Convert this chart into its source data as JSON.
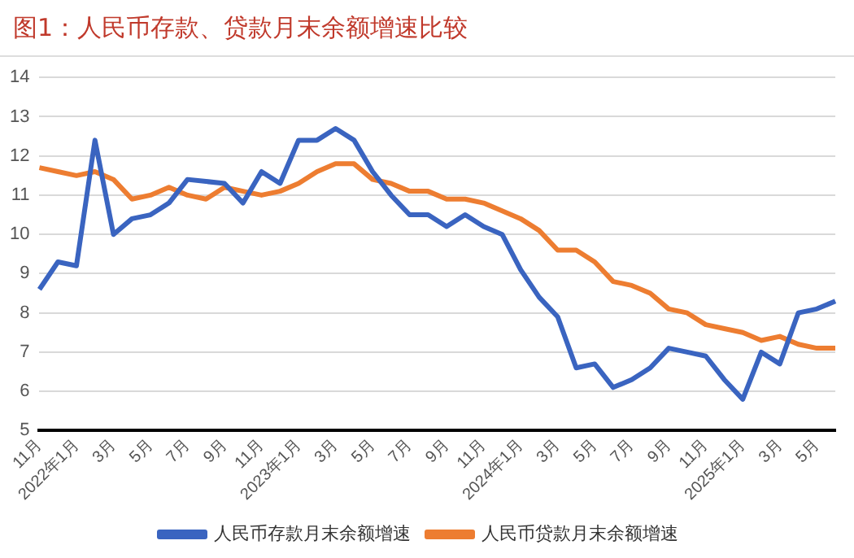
{
  "chart_data": {
    "type": "line",
    "title": "图1：人民币存款、贷款月末余额增速比较",
    "categories": [
      "11月",
      null,
      "2022年1月",
      null,
      "3月",
      null,
      "5月",
      null,
      "7月",
      null,
      "9月",
      null,
      "11月",
      null,
      "2023年1月",
      null,
      "3月",
      null,
      "5月",
      null,
      "7月",
      null,
      "9月",
      null,
      "11月",
      null,
      "2024年1月",
      null,
      "3月",
      null,
      "5月",
      null,
      "7月",
      null,
      "9月",
      null,
      "11月",
      null,
      "2025年1月",
      null,
      "3月",
      null,
      "5月",
      null
    ],
    "series": [
      {
        "name": "人民币存款月末余额增速",
        "color": "#3a64c0",
        "values": [
          8.6,
          9.3,
          9.2,
          12.4,
          10.0,
          10.4,
          10.5,
          10.8,
          11.4,
          11.35,
          11.3,
          10.8,
          11.6,
          11.3,
          12.4,
          12.4,
          12.7,
          12.4,
          11.6,
          11.0,
          10.5,
          10.5,
          10.2,
          10.5,
          10.2,
          10.0,
          9.1,
          8.4,
          7.9,
          6.6,
          6.7,
          6.1,
          6.3,
          6.6,
          7.1,
          7.0,
          6.9,
          6.3,
          5.8,
          7.0,
          6.7,
          8.0,
          8.1,
          8.3
        ]
      },
      {
        "name": "人民币贷款月末余额增速",
        "color": "#ed7d31",
        "values": [
          11.7,
          11.6,
          11.5,
          11.6,
          11.4,
          10.9,
          11.0,
          11.2,
          11.0,
          10.9,
          11.2,
          11.1,
          11.0,
          11.1,
          11.3,
          11.6,
          11.8,
          11.8,
          11.4,
          11.3,
          11.1,
          11.1,
          10.9,
          10.9,
          10.8,
          10.6,
          10.4,
          10.1,
          9.6,
          9.6,
          9.3,
          8.8,
          8.7,
          8.5,
          8.1,
          8.0,
          7.7,
          7.6,
          7.5,
          7.3,
          7.4,
          7.2,
          7.1,
          7.1
        ]
      }
    ],
    "ylim": [
      5,
      14
    ],
    "yticks": [
      5,
      6,
      7,
      8,
      9,
      10,
      11,
      12,
      13,
      14
    ],
    "grid": "y",
    "legend": "bottom",
    "marker": "none",
    "line_style": "solid"
  }
}
